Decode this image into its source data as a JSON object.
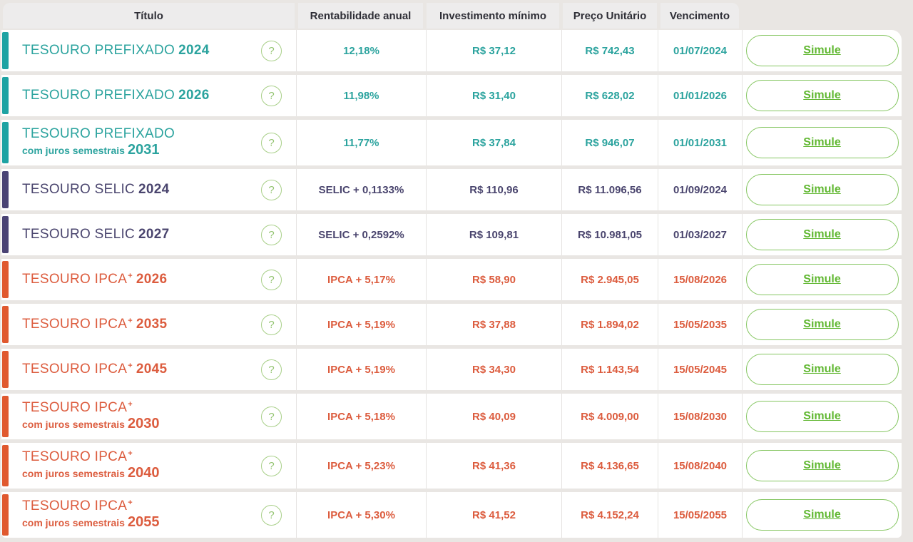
{
  "colors": {
    "teal": "#2ba39e",
    "teal_bar": "#1ea3a3",
    "purple": "#4a456e",
    "purple_bar": "#4a4374",
    "orange": "#dc5c3e",
    "orange_bar": "#e0592f",
    "green_text": "#62b833",
    "green_border": "#85c661",
    "help_border": "#a8cf88",
    "help_text": "#95c573",
    "header_bg": "#edecec",
    "header_text": "#2e2e36",
    "page_bg": "#e9e6e3",
    "card_bg": "#ffffff",
    "separator": "#e5e3e1"
  },
  "help_icon": "?",
  "simulate_label": "Simule",
  "headers": {
    "titulo": "Título",
    "rentabilidade": "Rentabilidade anual",
    "investimento": "Investimento mínimo",
    "preco": "Preço Unitário",
    "vencimento": "Vencimento"
  },
  "rows": [
    {
      "theme": "teal",
      "title": "TESOURO PREFIXADO",
      "sup": "",
      "subtitle": "",
      "year": "2024",
      "rate": "12,18%",
      "min": "R$ 37,12",
      "price": "R$ 742,43",
      "maturity": "01/07/2024"
    },
    {
      "theme": "teal",
      "title": "TESOURO PREFIXADO",
      "sup": "",
      "subtitle": "",
      "year": "2026",
      "rate": "11,98%",
      "min": "R$ 31,40",
      "price": "R$ 628,02",
      "maturity": "01/01/2026"
    },
    {
      "theme": "teal",
      "title": "TESOURO PREFIXADO",
      "sup": "",
      "subtitle": "com juros semestrais",
      "year": "2031",
      "rate": "11,77%",
      "min": "R$ 37,84",
      "price": "R$ 946,07",
      "maturity": "01/01/2031"
    },
    {
      "theme": "purple",
      "title": "TESOURO SELIC",
      "sup": "",
      "subtitle": "",
      "year": "2024",
      "rate": "SELIC + 0,1133%",
      "min": "R$ 110,96",
      "price": "R$ 11.096,56",
      "maturity": "01/09/2024"
    },
    {
      "theme": "purple",
      "title": "TESOURO SELIC",
      "sup": "",
      "subtitle": "",
      "year": "2027",
      "rate": "SELIC + 0,2592%",
      "min": "R$ 109,81",
      "price": "R$ 10.981,05",
      "maturity": "01/03/2027"
    },
    {
      "theme": "orange",
      "title": "TESOURO IPCA",
      "sup": "+",
      "subtitle": "",
      "year": "2026",
      "rate": "IPCA + 5,17%",
      "min": "R$ 58,90",
      "price": "R$ 2.945,05",
      "maturity": "15/08/2026"
    },
    {
      "theme": "orange",
      "title": "TESOURO IPCA",
      "sup": "+",
      "subtitle": "",
      "year": "2035",
      "rate": "IPCA + 5,19%",
      "min": "R$ 37,88",
      "price": "R$ 1.894,02",
      "maturity": "15/05/2035"
    },
    {
      "theme": "orange",
      "title": "TESOURO IPCA",
      "sup": "+",
      "subtitle": "",
      "year": "2045",
      "rate": "IPCA + 5,19%",
      "min": "R$ 34,30",
      "price": "R$ 1.143,54",
      "maturity": "15/05/2045"
    },
    {
      "theme": "orange",
      "title": "TESOURO IPCA",
      "sup": "+",
      "subtitle": "com juros semestrais",
      "year": "2030",
      "rate": "IPCA + 5,18%",
      "min": "R$ 40,09",
      "price": "R$ 4.009,00",
      "maturity": "15/08/2030"
    },
    {
      "theme": "orange",
      "title": "TESOURO IPCA",
      "sup": "+",
      "subtitle": "com juros semestrais",
      "year": "2040",
      "rate": "IPCA + 5,23%",
      "min": "R$ 41,36",
      "price": "R$ 4.136,65",
      "maturity": "15/08/2040"
    },
    {
      "theme": "orange",
      "title": "TESOURO IPCA",
      "sup": "+",
      "subtitle": "com juros semestrais",
      "year": "2055",
      "rate": "IPCA + 5,30%",
      "min": "R$ 41,52",
      "price": "R$ 4.152,24",
      "maturity": "15/05/2055"
    }
  ]
}
